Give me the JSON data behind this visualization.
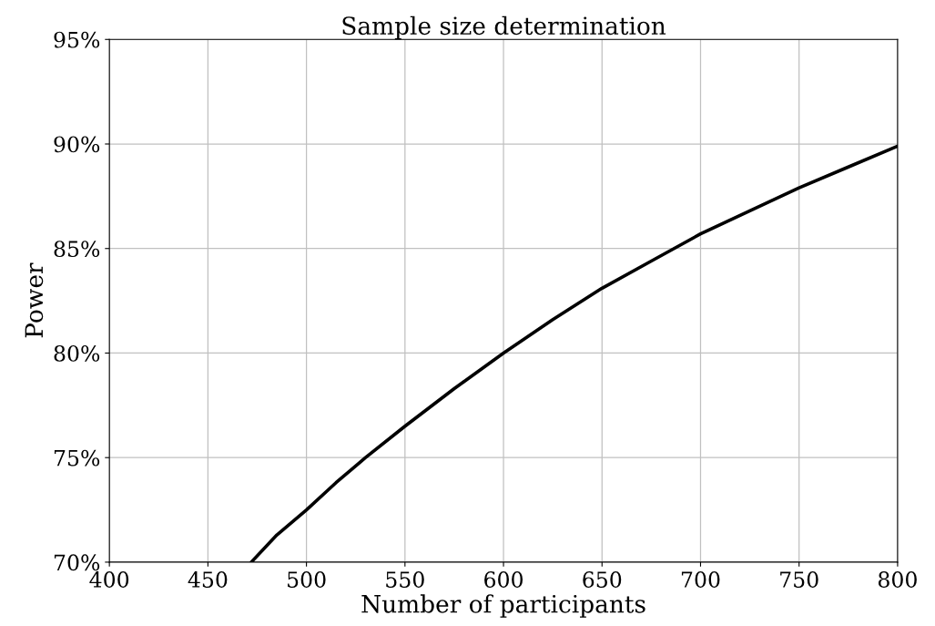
{
  "chart_data": {
    "type": "line",
    "title": "Sample size determination",
    "xlabel": "Number of participants",
    "ylabel": "Power",
    "series": [
      {
        "color": "#000000",
        "x": [
          472,
          485,
          500,
          515,
          530,
          550,
          575,
          600,
          625,
          650,
          675,
          700,
          725,
          750,
          775,
          800
        ],
        "values": [
          70,
          71.3,
          72.5,
          73.8,
          75,
          76.5,
          78.3,
          80,
          81.6,
          83.1,
          84.4,
          85.7,
          86.8,
          87.9,
          88.9,
          89.9
        ]
      }
    ],
    "xlim": [
      400,
      800
    ],
    "xticks": [
      400,
      450,
      500,
      550,
      600,
      650,
      700,
      750,
      800
    ],
    "ylim": [
      70,
      95
    ],
    "yticks": [
      {
        "value": 70,
        "label": "70%"
      },
      {
        "value": 75,
        "label": "75%"
      },
      {
        "value": 80,
        "label": "80%"
      },
      {
        "value": 85,
        "label": "85%"
      },
      {
        "value": 90,
        "label": "90%"
      },
      {
        "value": 95,
        "label": "95%"
      }
    ],
    "grid": true,
    "marker": "none",
    "line_style": "solid",
    "legend": false
  }
}
